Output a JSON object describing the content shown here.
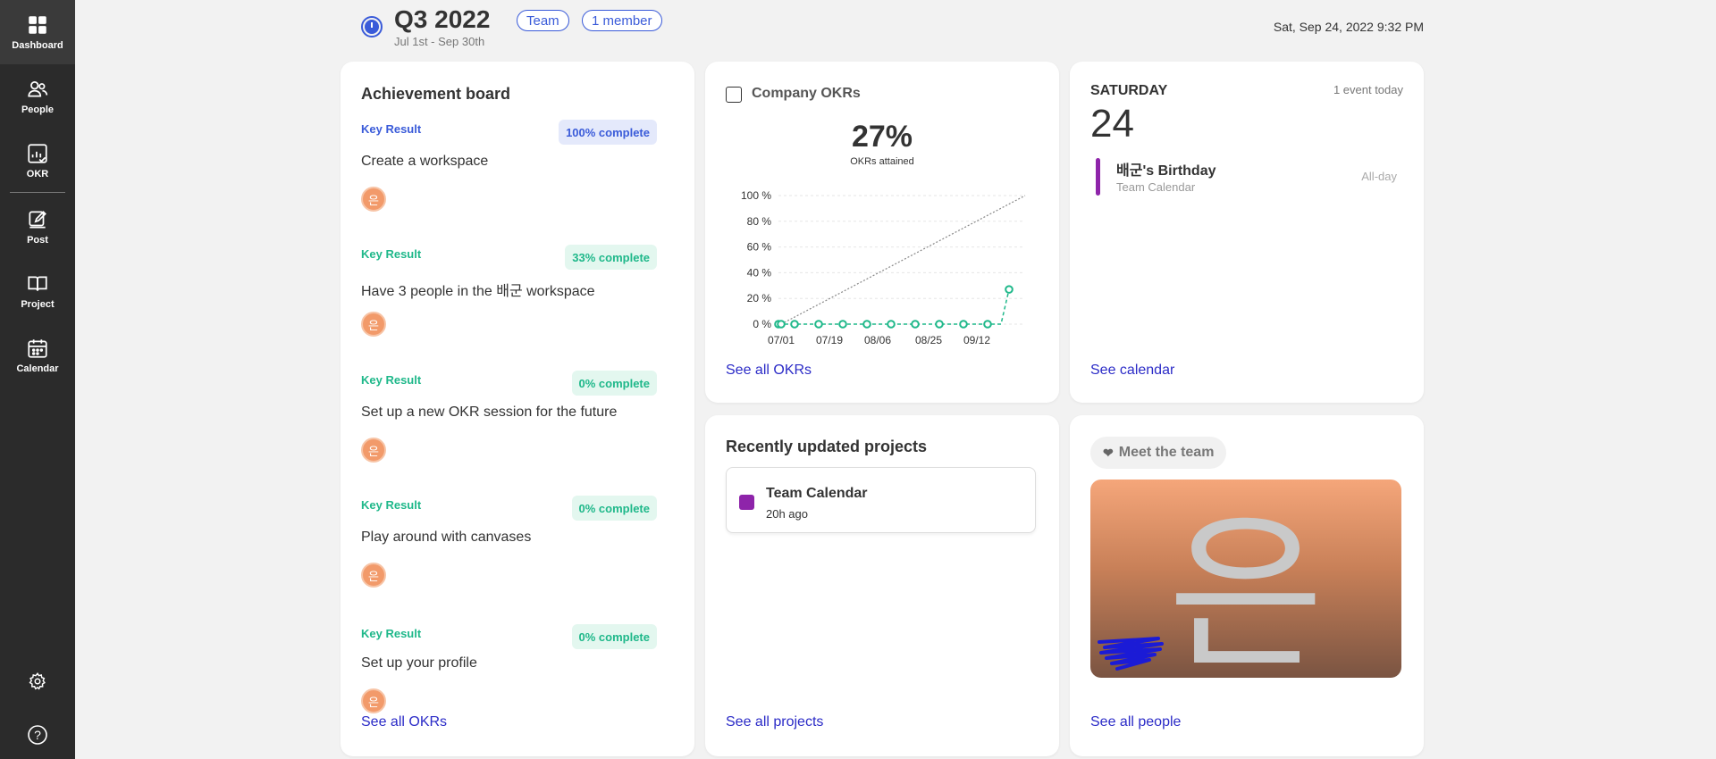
{
  "sidebar": {
    "items": [
      {
        "label": "Dashboard",
        "icon": "grid-icon"
      },
      {
        "label": "People",
        "icon": "people-icon"
      },
      {
        "label": "OKR",
        "icon": "okr-chart-icon"
      },
      {
        "label": "Post",
        "icon": "edit-icon"
      },
      {
        "label": "Project",
        "icon": "book-icon"
      },
      {
        "label": "Calendar",
        "icon": "calendar-icon"
      }
    ],
    "settings_icon": "gear-icon",
    "help_icon": "question-icon",
    "help_glyph": "?"
  },
  "header": {
    "title": "Q3 2022",
    "pills": [
      "Team",
      "1 member"
    ],
    "dates": "Jul 1st - Sep 30th",
    "now": "Sat, Sep 24, 2022 9:32 PM",
    "accent": "#3a5bd9"
  },
  "achievement": {
    "title": "Achievement board",
    "items": [
      {
        "label": "Key Result",
        "badge": "100% complete",
        "title": "Create a workspace",
        "avatar": "은"
      },
      {
        "label": "Key Result",
        "badge": "33% complete",
        "title": "Have 3 people in the 배군 workspace",
        "avatar": "은"
      },
      {
        "label": "Key Result",
        "badge": "0% complete",
        "title": "Set up a new OKR session for the future",
        "avatar": "은"
      },
      {
        "label": "Key Result",
        "badge": "0% complete",
        "title": "Play around with canvases",
        "avatar": "은"
      },
      {
        "label": "Key Result",
        "badge": "0% complete",
        "title": "Set up your profile",
        "avatar": "은"
      }
    ],
    "link": "See all OKRs"
  },
  "company_okrs": {
    "title": "Company OKRs",
    "percent": "27%",
    "subtitle": "OKRs attained",
    "link": "See all OKRs"
  },
  "chart_data": {
    "type": "line",
    "x_tick_labels": [
      "07/01",
      "07/19",
      "08/06",
      "08/25",
      "09/12"
    ],
    "y_tick_labels": [
      "0 %",
      "20 %",
      "40 %",
      "60 %",
      "80 %",
      "100 %"
    ],
    "ylim": [
      0,
      100
    ],
    "series": [
      {
        "x": [
          "06/30",
          "07/01",
          "07/06",
          "07/10",
          "07/15",
          "07/19",
          "07/24",
          "07/28",
          "08/02",
          "08/06",
          "08/11",
          "08/15",
          "08/20",
          "08/25",
          "08/29",
          "09/03",
          "09/07",
          "09/12",
          "09/16",
          "09/21",
          "09/24"
        ],
        "values": [
          0,
          0,
          0,
          0,
          0,
          0,
          0,
          0,
          0,
          0,
          0,
          0,
          0,
          0,
          0,
          0,
          0,
          0,
          0,
          0,
          27
        ]
      },
      {
        "style": "target-diagonal",
        "x": [
          "07/01",
          "09/30"
        ],
        "values": [
          0,
          100
        ]
      }
    ],
    "colors": {
      "actual": "#1fb88a",
      "target": "#888888"
    },
    "grid": true
  },
  "calendar": {
    "day_name": "SATURDAY",
    "events_today": "1 event today",
    "day_number": "24",
    "event_title": "배군's Birthday",
    "event_calendar": "Team Calendar",
    "event_time": "All-day",
    "link": "See calendar"
  },
  "projects": {
    "title": "Recently updated projects",
    "items": [
      {
        "name": "Team Calendar",
        "updated": "20h ago",
        "color": "#8e24aa"
      }
    ],
    "link": "See all projects"
  },
  "team": {
    "title": "Meet the team",
    "glyph": "은",
    "link": "See all people"
  }
}
